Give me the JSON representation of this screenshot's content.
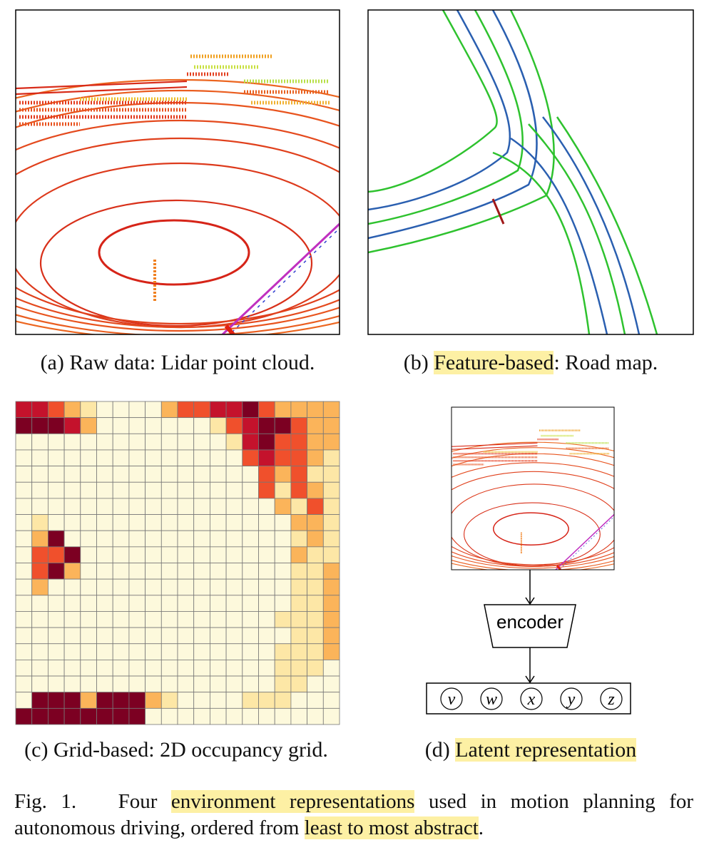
{
  "panels": [
    {
      "label": "(a)",
      "caption": "Raw data: Lidar point cloud."
    },
    {
      "label": "(b)",
      "highlight": "Feature-based",
      "caption": ": Road map."
    },
    {
      "label": "(c)",
      "caption": "Grid-based: 2D occupancy grid."
    },
    {
      "label": "(d)",
      "highlight": "Latent representation"
    }
  ],
  "encoder": "encoder",
  "latent": [
    "v",
    "w",
    "x",
    "y",
    "z"
  ],
  "figure_caption": {
    "label": "Fig. 1.",
    "parts": [
      "Four",
      "environment representations",
      "used in motion planning for autonomous driving, ordered from",
      "least to most abstract",
      "."
    ]
  }
}
